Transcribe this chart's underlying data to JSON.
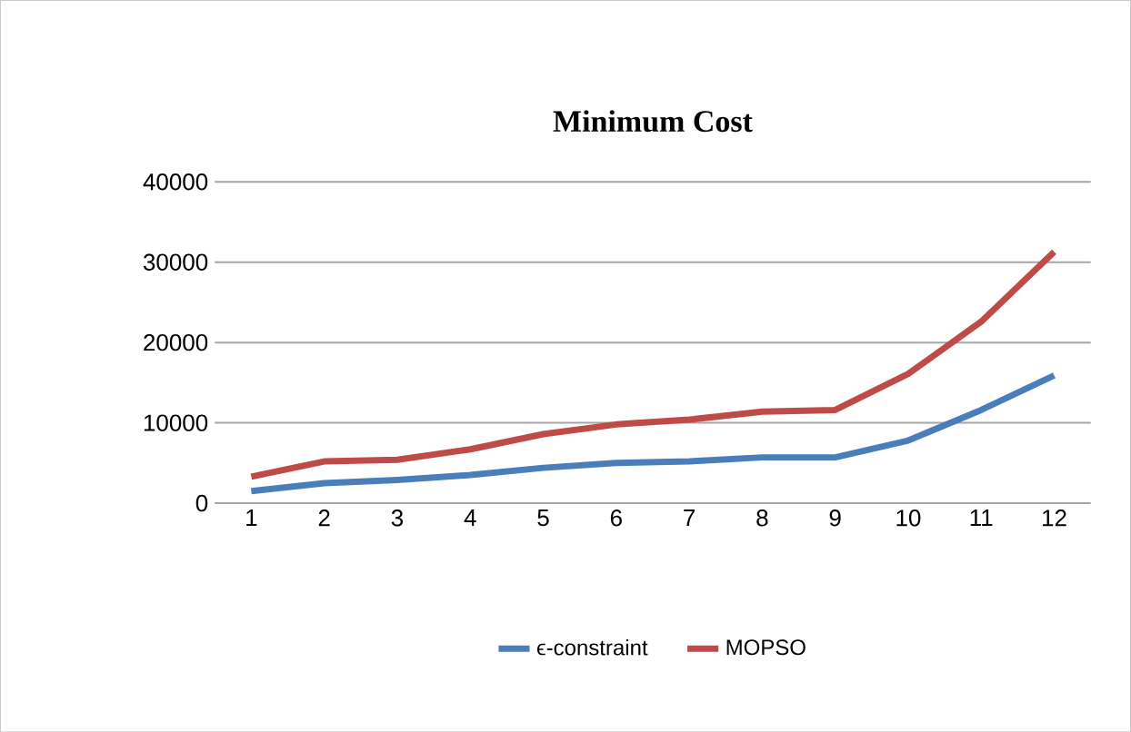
{
  "chart_data": {
    "type": "line",
    "title": "Minimum Cost",
    "categories": [
      "1",
      "2",
      "3",
      "4",
      "5",
      "6",
      "7",
      "8",
      "9",
      "10",
      "11",
      "12"
    ],
    "series": [
      {
        "name": "ϵ-constraint",
        "color": "#4a7ebb",
        "values": [
          1500,
          2500,
          2900,
          3500,
          4400,
          5000,
          5200,
          5700,
          5700,
          7800,
          11600,
          15900
        ]
      },
      {
        "name": "MOPSO",
        "color": "#be4b48",
        "values": [
          3300,
          5200,
          5400,
          6700,
          8600,
          9800,
          10400,
          11400,
          11600,
          16100,
          22600,
          31300
        ]
      }
    ],
    "ylim": [
      0,
      40000
    ],
    "yticks": [
      0,
      10000,
      20000,
      30000,
      40000
    ],
    "grid": "y",
    "legend": "bottom",
    "marker": "none",
    "line_style": "solid"
  }
}
